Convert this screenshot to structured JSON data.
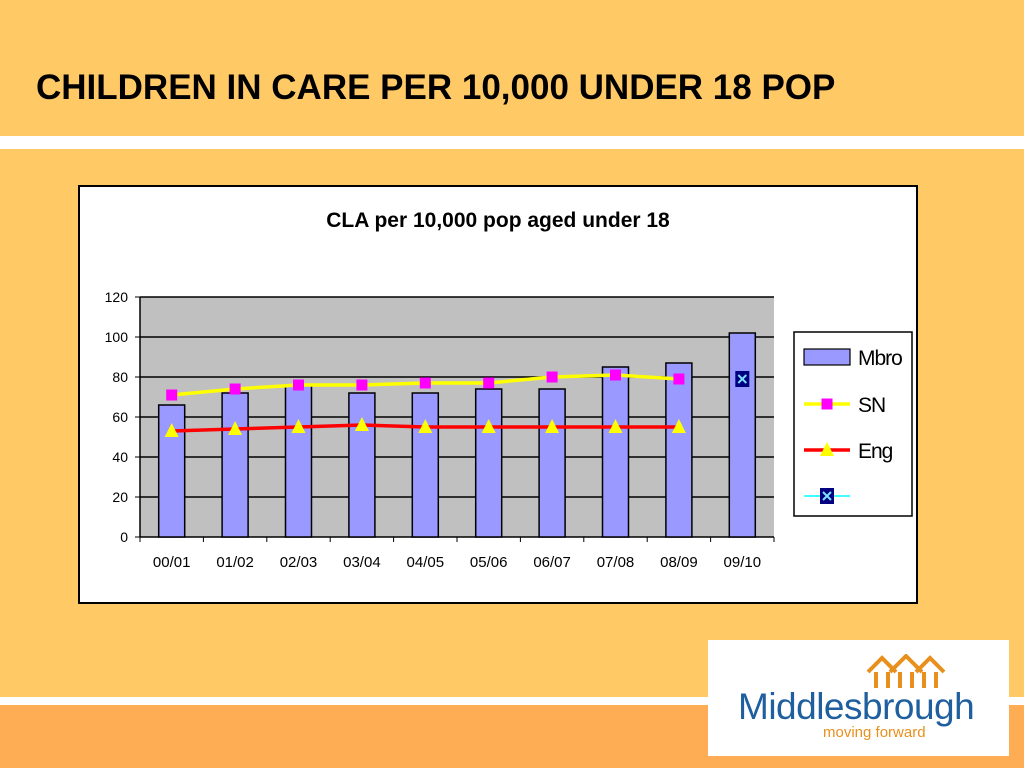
{
  "slide": {
    "title": "CHILDREN IN CARE PER 10,000 UNDER 18 POP"
  },
  "logo": {
    "name": "Middlesbrough",
    "tagline": "moving forward",
    "color_primary": "#1f5f9f",
    "color_accent": "#e8901e"
  },
  "colors": {
    "background": "#ffc966",
    "footer": "#ffad55",
    "plot_area": "#c0c0c0",
    "bar_fill": "#9999ff",
    "sn_line": "#ffff00",
    "sn_marker": "#ff00ff",
    "eng_line": "#ff0000",
    "eng_marker": "#ffff00",
    "fourth_line": "#00ffff",
    "fourth_marker": "#000080"
  },
  "chart_data": {
    "type": "bar",
    "title": "CLA per 10,000 pop aged under 18",
    "xlabel": "",
    "ylabel": "",
    "categories": [
      "00/01",
      "01/02",
      "02/03",
      "03/04",
      "04/05",
      "05/06",
      "06/07",
      "07/08",
      "08/09",
      "09/10"
    ],
    "ylim": [
      0,
      120
    ],
    "yticks": [
      0,
      20,
      40,
      60,
      80,
      100,
      120
    ],
    "grid": true,
    "legend_position": "right",
    "series": [
      {
        "name": "Mbro",
        "type": "bar",
        "values": [
          66,
          72,
          76,
          72,
          72,
          74,
          74,
          85,
          87,
          102
        ]
      },
      {
        "name": "SN",
        "type": "line",
        "marker": "square",
        "values": [
          71,
          74,
          76,
          76,
          77,
          77,
          80,
          81,
          79,
          null
        ]
      },
      {
        "name": "Eng",
        "type": "line",
        "marker": "triangle",
        "values": [
          53,
          54,
          55,
          56,
          55,
          55,
          55,
          55,
          55,
          null
        ]
      },
      {
        "name": "",
        "type": "line",
        "marker": "x",
        "values": [
          null,
          null,
          null,
          null,
          null,
          null,
          null,
          null,
          null,
          79
        ]
      }
    ]
  }
}
